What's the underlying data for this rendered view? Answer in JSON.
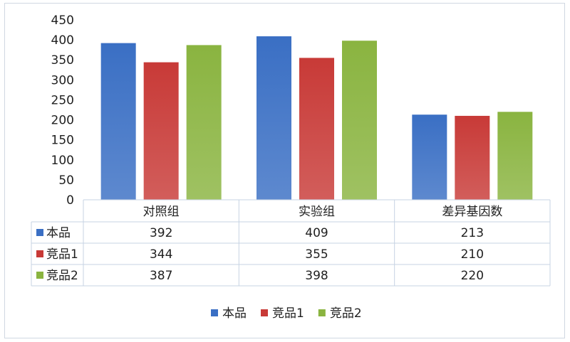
{
  "chart_data": {
    "type": "bar",
    "categories": [
      "对照组",
      "实验组",
      "差异基因数"
    ],
    "series": [
      {
        "name": "本品",
        "values": [
          392,
          409,
          213
        ],
        "color": "#3a6fc4"
      },
      {
        "name": "竞品1",
        "values": [
          344,
          355,
          210
        ],
        "color": "#c83a37"
      },
      {
        "name": "竞品2",
        "values": [
          387,
          398,
          220
        ],
        "color": "#8ab440"
      }
    ],
    "y_ticks": [
      "0",
      "50",
      "100",
      "150",
      "200",
      "250",
      "300",
      "350",
      "400",
      "450"
    ],
    "ylim": [
      0,
      450
    ],
    "grid": false,
    "data_table": true,
    "legend_position": "bottom"
  }
}
